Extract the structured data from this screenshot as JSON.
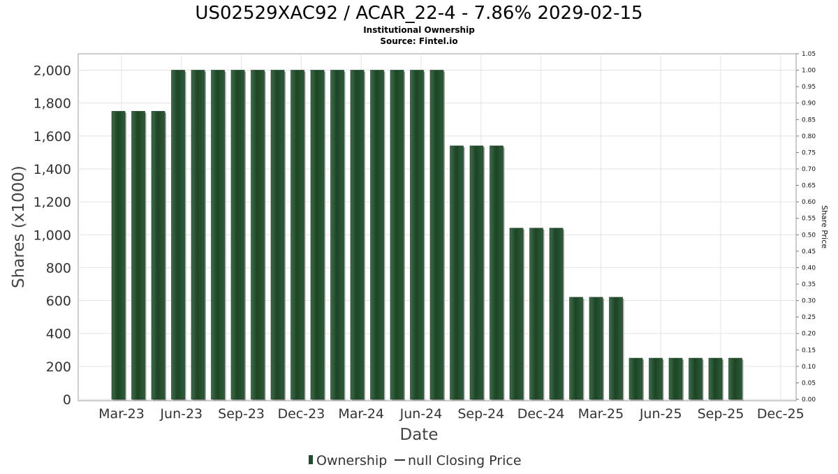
{
  "chart_data": {
    "type": "bar",
    "title": "US02529XAC92 / ACAR_22-4 - 7.86% 2029-02-15",
    "subtitle": "Institutional Ownership",
    "source": "Source: Fintel.io",
    "xlabel": "Date",
    "ylabel": "Shares (x1000)",
    "y2label": "Share Price",
    "ylim": [
      0,
      2100
    ],
    "yticks": [
      0,
      200,
      400,
      600,
      800,
      1000,
      1200,
      1400,
      1600,
      1800,
      2000
    ],
    "ytick_labels": [
      "0",
      "200",
      "400",
      "600",
      "800",
      "1,000",
      "1,200",
      "1,400",
      "1,600",
      "1,800",
      "2,000"
    ],
    "y2lim": [
      0,
      1.05
    ],
    "y2tick_labels": [
      "0.00",
      "0.05",
      "0.10",
      "0.15",
      "0.20",
      "0.25",
      "0.30",
      "0.35",
      "0.40",
      "0.45",
      "0.50",
      "0.55",
      "0.60",
      "0.65",
      "0.70",
      "0.75",
      "0.80",
      "0.85",
      "0.90",
      "0.95",
      "1.00",
      "1.05"
    ],
    "xtick_labels": [
      "Mar-23",
      "Jun-23",
      "Sep-23",
      "Dec-23",
      "Mar-24",
      "Jun-24",
      "Sep-24",
      "Dec-24",
      "Mar-25",
      "Jun-25",
      "Sep-25",
      "Dec-25"
    ],
    "grid": true,
    "series": [
      {
        "name": "Ownership",
        "color": "#1f4d2b",
        "values": [
          1750,
          1750,
          1750,
          2000,
          2000,
          2000,
          2000,
          2000,
          2000,
          2000,
          2000,
          2000,
          2000,
          2000,
          2000,
          2000,
          2000,
          1540,
          1540,
          1540,
          1040,
          1040,
          1040,
          620,
          620,
          620,
          250,
          250,
          250,
          250,
          250,
          250
        ]
      }
    ],
    "legend": [
      {
        "label": "Ownership",
        "marker": "bar"
      },
      {
        "label": "null Closing Price",
        "marker": "line"
      }
    ],
    "legend_position": "bottom-center"
  }
}
